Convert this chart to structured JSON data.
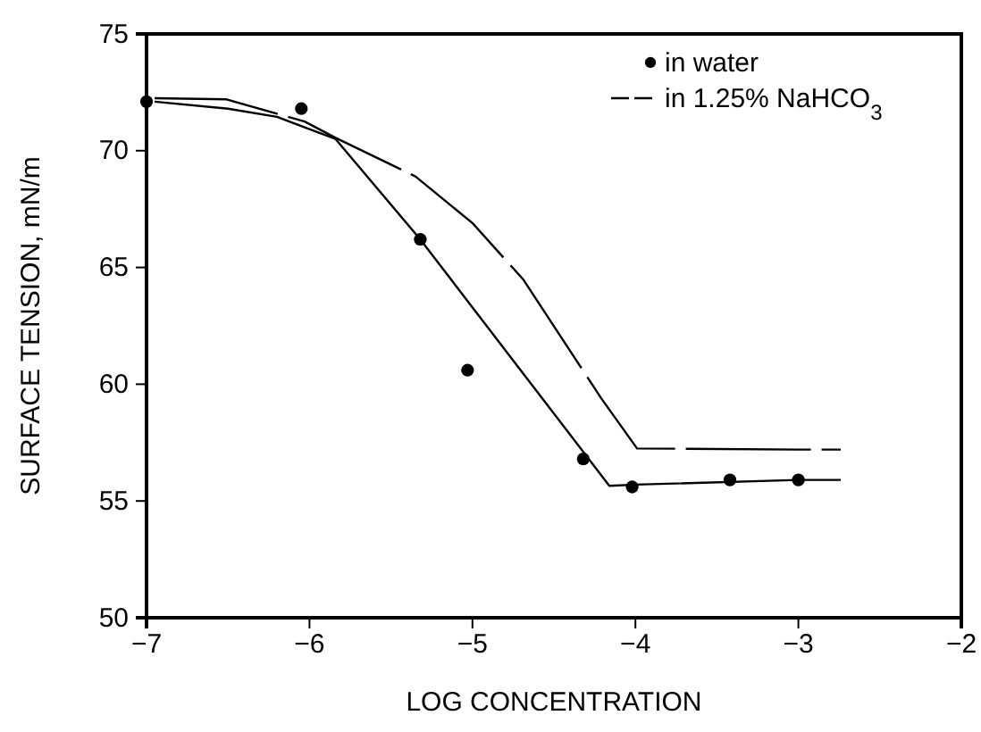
{
  "chart_data": {
    "type": "scatter",
    "xlabel": "LOG CONCENTRATION",
    "ylabel": "SURFACE TENSION, mN/m",
    "xlim": [
      -7,
      -2
    ],
    "ylim": [
      50,
      75
    ],
    "xticks": [
      -7,
      -6,
      -5,
      -4,
      -3,
      -2
    ],
    "yticks": [
      50,
      55,
      60,
      65,
      70,
      75
    ],
    "grid": false,
    "legend": "top right",
    "series": [
      {
        "name": "in water",
        "marker": "circle",
        "color": "#000000",
        "x": [
          -7.0,
          -6.05,
          -5.32,
          -5.03,
          -4.32,
          -4.02,
          -3.42,
          -3.0
        ],
        "values": [
          72.1,
          71.8,
          66.2,
          60.6,
          56.8,
          55.6,
          55.9,
          55.9
        ]
      },
      {
        "type": "line",
        "marker": "none",
        "line_style": "solid",
        "color": "#000000",
        "x": [
          -6.95,
          -6.5,
          -6.2,
          -6.03,
          -5.84,
          -5.32,
          -4.16,
          -4.0,
          -3.0,
          -2.74
        ],
        "values": [
          72.1,
          71.8,
          71.45,
          71.0,
          70.5,
          66.2,
          55.65,
          55.7,
          55.9,
          55.9
        ]
      },
      {
        "name": "in 1.25% NaHCO$_{3}$",
        "type": "line",
        "marker": "none",
        "line_style": "dashed",
        "color": "#000000",
        "x": [
          -6.95,
          -6.51,
          -6.03,
          -5.84,
          -5.35,
          -5.0,
          -4.69,
          -4.21,
          -3.99,
          -3.0,
          -2.74
        ],
        "values": [
          72.25,
          72.2,
          71.25,
          70.55,
          68.9,
          66.9,
          64.5,
          59.4,
          57.25,
          57.2,
          57.2
        ]
      }
    ]
  }
}
